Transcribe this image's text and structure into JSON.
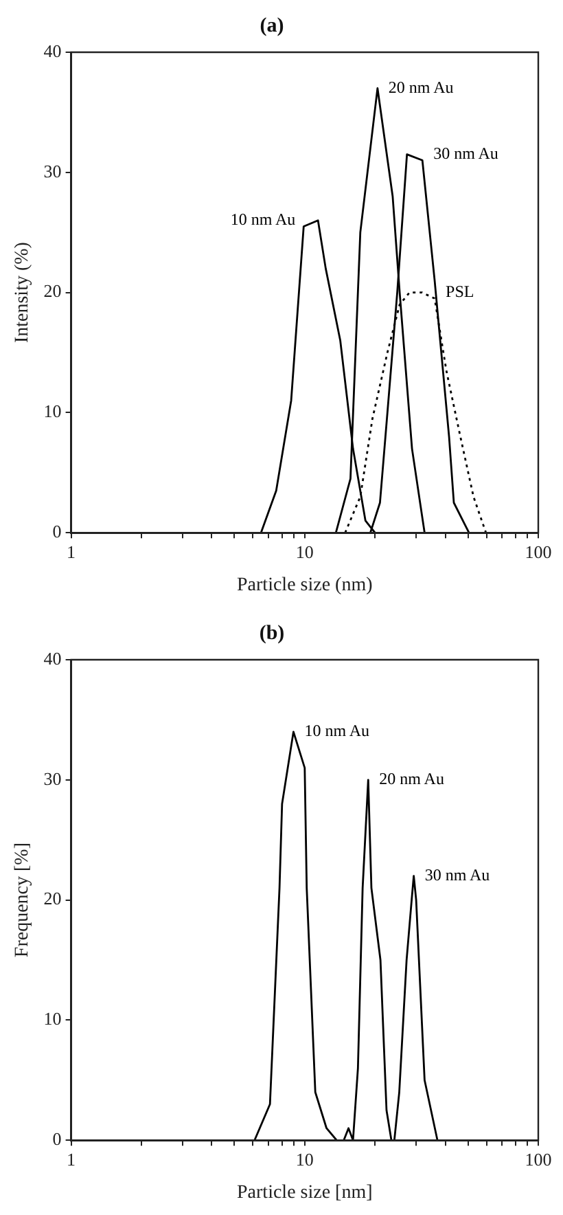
{
  "chart_data": [
    {
      "type": "line",
      "title": "(a)",
      "xlabel": "Particle size (nm)",
      "ylabel": "Intensity (%)",
      "log": "x",
      "grid": false,
      "legend": false,
      "marker": "none",
      "xlim": [
        1,
        100
      ],
      "xticks": [
        1,
        {
          "value": 2,
          "label": null
        },
        {
          "value": 3,
          "label": null
        },
        {
          "value": 4,
          "label": null
        },
        {
          "value": 5,
          "label": null
        },
        {
          "value": 6,
          "label": null
        },
        {
          "value": 7,
          "label": null
        },
        {
          "value": 8,
          "label": null
        },
        {
          "value": 9,
          "label": null
        },
        10,
        {
          "value": 20,
          "label": null
        },
        {
          "value": 30,
          "label": null
        },
        {
          "value": 40,
          "label": null
        },
        {
          "value": 50,
          "label": null
        },
        {
          "value": 60,
          "label": null
        },
        {
          "value": 70,
          "label": null
        },
        {
          "value": 80,
          "label": null
        },
        {
          "value": 90,
          "label": null
        },
        100
      ],
      "ylim": [
        0,
        40
      ],
      "yticks": [
        0,
        10,
        20,
        30,
        40
      ],
      "series": [
        {
          "name": "10 nm Au",
          "color": "#000000",
          "line_style": "solid",
          "x": [
            6.5,
            7.55,
            8.75,
            9.9,
            11.4,
            12.3,
            14.2,
            16.1,
            18.2,
            20
          ],
          "values": [
            0,
            3.5,
            11,
            25.5,
            26,
            22,
            16,
            7,
            1,
            0
          ]
        },
        {
          "name": "20 nm Au",
          "color": "#000000",
          "line_style": "solid",
          "x": [
            13.6,
            15.7,
            17.3,
            20.5,
            23.8,
            25.5,
            28.8,
            32.6
          ],
          "values": [
            0,
            4.5,
            25,
            37,
            28,
            20,
            7,
            0
          ]
        },
        {
          "name": "30 nm Au",
          "color": "#000000",
          "line_style": "solid",
          "x": [
            19.1,
            21,
            22.6,
            24.9,
            27.4,
            31.9,
            36,
            41.5,
            43.5,
            50.5
          ],
          "values": [
            0,
            2.5,
            10,
            20,
            31.5,
            31,
            21,
            8,
            2.5,
            0
          ]
        },
        {
          "name": "PSL",
          "color": "#000000",
          "line_style": "dotted",
          "x": [
            14.9,
            17.3,
            19.5,
            22.6,
            25.5,
            28.1,
            31.8,
            36,
            40.4,
            45.8,
            52.8,
            59.7
          ],
          "values": [
            0,
            3,
            9.5,
            15,
            19,
            20,
            20,
            19.5,
            13.5,
            8.5,
            3,
            0
          ]
        }
      ]
    },
    {
      "type": "line",
      "title": "(b)",
      "xlabel": "Particle size [nm]",
      "ylabel": "Frequency [%]",
      "log": "x",
      "grid": false,
      "legend": false,
      "marker": "none",
      "xlim": [
        1,
        100
      ],
      "xticks": [
        1,
        {
          "value": 2,
          "label": null
        },
        {
          "value": 3,
          "label": null
        },
        {
          "value": 4,
          "label": null
        },
        {
          "value": 5,
          "label": null
        },
        {
          "value": 6,
          "label": null
        },
        {
          "value": 7,
          "label": null
        },
        {
          "value": 8,
          "label": null
        },
        {
          "value": 9,
          "label": null
        },
        10,
        {
          "value": 20,
          "label": null
        },
        {
          "value": 30,
          "label": null
        },
        {
          "value": 40,
          "label": null
        },
        {
          "value": 50,
          "label": null
        },
        {
          "value": 60,
          "label": null
        },
        {
          "value": 70,
          "label": null
        },
        {
          "value": 80,
          "label": null
        },
        {
          "value": 90,
          "label": null
        },
        100
      ],
      "ylim": [
        0,
        40
      ],
      "yticks": [
        0,
        10,
        20,
        30,
        40
      ],
      "series": [
        {
          "name": "10 nm Au",
          "color": "#000000",
          "line_style": "solid",
          "x": [
            6.1,
            7.1,
            7.8,
            8,
            8.95,
            10,
            10.2,
            11.1,
            12.4,
            13.7
          ],
          "values": [
            0,
            3,
            21,
            28,
            34,
            31,
            21,
            4,
            1,
            0
          ]
        },
        {
          "name": "20 nm Au",
          "color": "#000000",
          "line_style": "solid",
          "x": [
            14.7,
            15.4,
            16.1,
            16.9,
            17.7,
            18.7,
            19.3,
            21.1,
            22.4,
            23.5
          ],
          "values": [
            0,
            1,
            0,
            6,
            21,
            30,
            21,
            15,
            2.5,
            0
          ]
        },
        {
          "name": "30 nm Au",
          "color": "#000000",
          "line_style": "solid",
          "x": [
            24.2,
            25.4,
            27.3,
            28.7,
            29.3,
            30,
            32.6,
            37
          ],
          "values": [
            0,
            4,
            15,
            20,
            22,
            20,
            5,
            0
          ]
        }
      ]
    }
  ]
}
